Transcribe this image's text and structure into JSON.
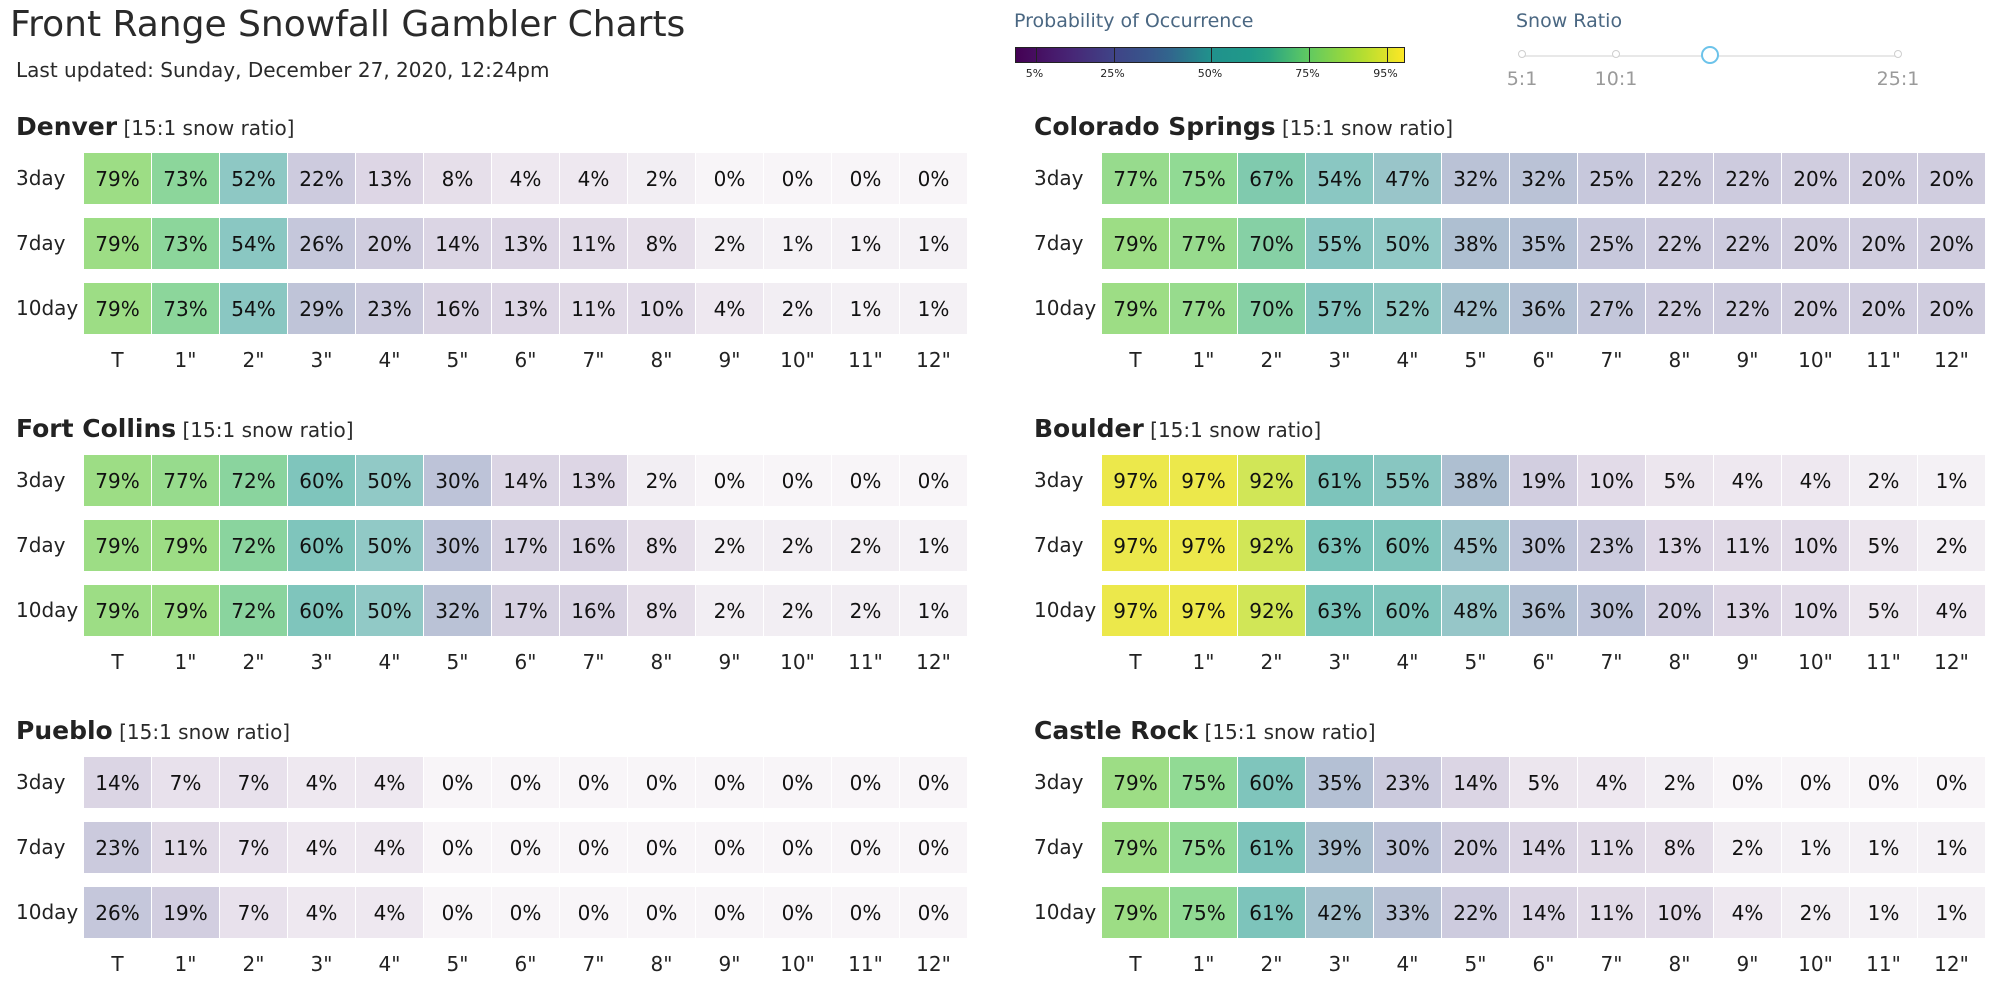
{
  "header": {
    "title": "Front Range Snowfall Gambler Charts",
    "last_updated": "Last updated: Sunday, December 27, 2020, 12:24pm"
  },
  "legend": {
    "title": "Probability of Occurrence",
    "tick_labels": [
      "5%",
      "25%",
      "50%",
      "75%",
      "95%"
    ],
    "tick_values": [
      5,
      25,
      50,
      75,
      95
    ],
    "colormap": "viridis"
  },
  "snow_ratio": {
    "title": "Snow Ratio",
    "labels": [
      "5:1",
      "10:1",
      "",
      "25:1"
    ],
    "stops": [
      5,
      10,
      15,
      25
    ],
    "selected": 15
  },
  "columns": [
    "T",
    "1\"",
    "2\"",
    "3\"",
    "4\"",
    "5\"",
    "6\"",
    "7\"",
    "8\"",
    "9\"",
    "10\"",
    "11\"",
    "12\""
  ],
  "cities": [
    {
      "name": "Denver",
      "ratio_label": "[15:1 snow ratio]",
      "rows": [
        {
          "label": "3day",
          "values": [
            79,
            73,
            52,
            22,
            13,
            8,
            4,
            4,
            2,
            0,
            0,
            0,
            0
          ],
          "text": [
            "79%",
            "73%",
            "52%",
            "22%",
            "13%",
            "8%",
            "4%",
            "4%",
            "2%",
            "0%",
            "0%",
            "0%",
            "0%"
          ]
        },
        {
          "label": "7day",
          "values": [
            79,
            73,
            54,
            26,
            20,
            14,
            13,
            11,
            8,
            2,
            1,
            1,
            1
          ],
          "text": [
            "79%",
            "73%",
            "54%",
            "26%",
            "20%",
            "14%",
            "13%",
            "11%",
            "8%",
            "2%",
            "1%",
            "1%",
            "1%"
          ]
        },
        {
          "label": "10day",
          "values": [
            79,
            73,
            54,
            29,
            23,
            16,
            13,
            11,
            10,
            4,
            2,
            1,
            1
          ],
          "text": [
            "79%",
            "73%",
            "54%",
            "29%",
            "23%",
            "16%",
            "13%",
            "11%",
            "10%",
            "4%",
            "2%",
            "1%",
            "1%"
          ]
        }
      ]
    },
    {
      "name": "Colorado Springs",
      "ratio_label": "[15:1 snow ratio]",
      "rows": [
        {
          "label": "3day",
          "values": [
            77,
            75,
            67,
            54,
            47,
            32,
            32,
            25,
            22,
            22,
            20,
            20,
            20
          ],
          "text": [
            "77%",
            "75%",
            "67%",
            "54%",
            "47%",
            "32%",
            "32%",
            "25%",
            "22%",
            "22%",
            "20%",
            "20%",
            "20%"
          ]
        },
        {
          "label": "7day",
          "values": [
            79,
            77,
            70,
            55,
            50,
            38,
            35,
            25,
            22,
            22,
            20,
            20,
            20
          ],
          "text": [
            "79%",
            "77%",
            "70%",
            "55%",
            "50%",
            "38%",
            "35%",
            "25%",
            "22%",
            "22%",
            "20%",
            "20%",
            "20%"
          ]
        },
        {
          "label": "10day",
          "values": [
            79,
            77,
            70,
            57,
            52,
            42,
            36,
            27,
            22,
            22,
            20,
            20,
            20
          ],
          "text": [
            "79%",
            "77%",
            "70%",
            "57%",
            "52%",
            "42%",
            "36%",
            "27%",
            "22%",
            "22%",
            "20%",
            "20%",
            "20%"
          ]
        }
      ]
    },
    {
      "name": "Fort Collins",
      "ratio_label": "[15:1 snow ratio]",
      "rows": [
        {
          "label": "3day",
          "values": [
            79,
            77,
            72,
            60,
            50,
            30,
            14,
            13,
            2,
            0,
            0,
            0,
            0
          ],
          "text": [
            "79%",
            "77%",
            "72%",
            "60%",
            "50%",
            "30%",
            "14%",
            "13%",
            "2%",
            "0%",
            "0%",
            "0%",
            "0%"
          ]
        },
        {
          "label": "7day",
          "values": [
            79,
            79,
            72,
            60,
            50,
            30,
            17,
            16,
            8,
            2,
            2,
            2,
            1
          ],
          "text": [
            "79%",
            "79%",
            "72%",
            "60%",
            "50%",
            "30%",
            "17%",
            "16%",
            "8%",
            "2%",
            "2%",
            "2%",
            "1%"
          ]
        },
        {
          "label": "10day",
          "values": [
            79,
            79,
            72,
            60,
            50,
            32,
            17,
            16,
            8,
            2,
            2,
            2,
            1
          ],
          "text": [
            "79%",
            "79%",
            "72%",
            "60%",
            "50%",
            "32%",
            "17%",
            "16%",
            "8%",
            "2%",
            "2%",
            "2%",
            "1%"
          ]
        }
      ]
    },
    {
      "name": "Boulder",
      "ratio_label": "[15:1 snow ratio]",
      "rows": [
        {
          "label": "3day",
          "values": [
            97,
            97,
            92,
            61,
            55,
            38,
            19,
            10,
            5,
            4,
            4,
            2,
            1
          ],
          "text": [
            "97%",
            "97%",
            "92%",
            "61%",
            "55%",
            "38%",
            "19%",
            "10%",
            "5%",
            "4%",
            "4%",
            "2%",
            "1%"
          ]
        },
        {
          "label": "7day",
          "values": [
            97,
            97,
            92,
            63,
            60,
            45,
            30,
            23,
            13,
            11,
            10,
            5,
            2
          ],
          "text": [
            "97%",
            "97%",
            "92%",
            "63%",
            "60%",
            "45%",
            "30%",
            "23%",
            "13%",
            "11%",
            "10%",
            "5%",
            "2%"
          ]
        },
        {
          "label": "10day",
          "values": [
            97,
            97,
            92,
            63,
            60,
            48,
            36,
            30,
            20,
            13,
            10,
            5,
            4
          ],
          "text": [
            "97%",
            "97%",
            "92%",
            "63%",
            "60%",
            "48%",
            "36%",
            "30%",
            "20%",
            "13%",
            "10%",
            "5%",
            "4%"
          ]
        }
      ]
    },
    {
      "name": "Pueblo",
      "ratio_label": "[15:1 snow ratio]",
      "rows": [
        {
          "label": "3day",
          "values": [
            14,
            7,
            7,
            4,
            4,
            0,
            0,
            0,
            0,
            0,
            0,
            0,
            0
          ],
          "text": [
            "14%",
            "7%",
            "7%",
            "4%",
            "4%",
            "0%",
            "0%",
            "0%",
            "0%",
            "0%",
            "0%",
            "0%",
            "0%"
          ]
        },
        {
          "label": "7day",
          "values": [
            23,
            11,
            7,
            4,
            4,
            0,
            0,
            0,
            0,
            0,
            0,
            0,
            0
          ],
          "text": [
            "23%",
            "11%",
            "7%",
            "4%",
            "4%",
            "0%",
            "0%",
            "0%",
            "0%",
            "0%",
            "0%",
            "0%",
            "0%"
          ]
        },
        {
          "label": "10day",
          "values": [
            26,
            19,
            7,
            4,
            4,
            0,
            0,
            0,
            0,
            0,
            0,
            0,
            0
          ],
          "text": [
            "26%",
            "19%",
            "7%",
            "4%",
            "4%",
            "0%",
            "0%",
            "0%",
            "0%",
            "0%",
            "0%",
            "0%",
            "0%"
          ]
        }
      ]
    },
    {
      "name": "Castle Rock",
      "ratio_label": "[15:1 snow ratio]",
      "rows": [
        {
          "label": "3day",
          "values": [
            79,
            75,
            60,
            35,
            23,
            14,
            5,
            4,
            2,
            0,
            0,
            0,
            0
          ],
          "text": [
            "79%",
            "75%",
            "60%",
            "35%",
            "23%",
            "14%",
            "5%",
            "4%",
            "2%",
            "0%",
            "0%",
            "0%",
            "0%"
          ]
        },
        {
          "label": "7day",
          "values": [
            79,
            75,
            61,
            39,
            30,
            20,
            14,
            11,
            8,
            2,
            1,
            1,
            1
          ],
          "text": [
            "79%",
            "75%",
            "61%",
            "39%",
            "30%",
            "20%",
            "14%",
            "11%",
            "8%",
            "2%",
            "1%",
            "1%",
            "1%"
          ]
        },
        {
          "label": "10day",
          "values": [
            79,
            75,
            61,
            42,
            33,
            22,
            14,
            11,
            10,
            4,
            2,
            1,
            1
          ],
          "text": [
            "79%",
            "75%",
            "61%",
            "42%",
            "33%",
            "22%",
            "14%",
            "11%",
            "10%",
            "4%",
            "2%",
            "1%",
            "1%"
          ]
        }
      ]
    }
  ]
}
